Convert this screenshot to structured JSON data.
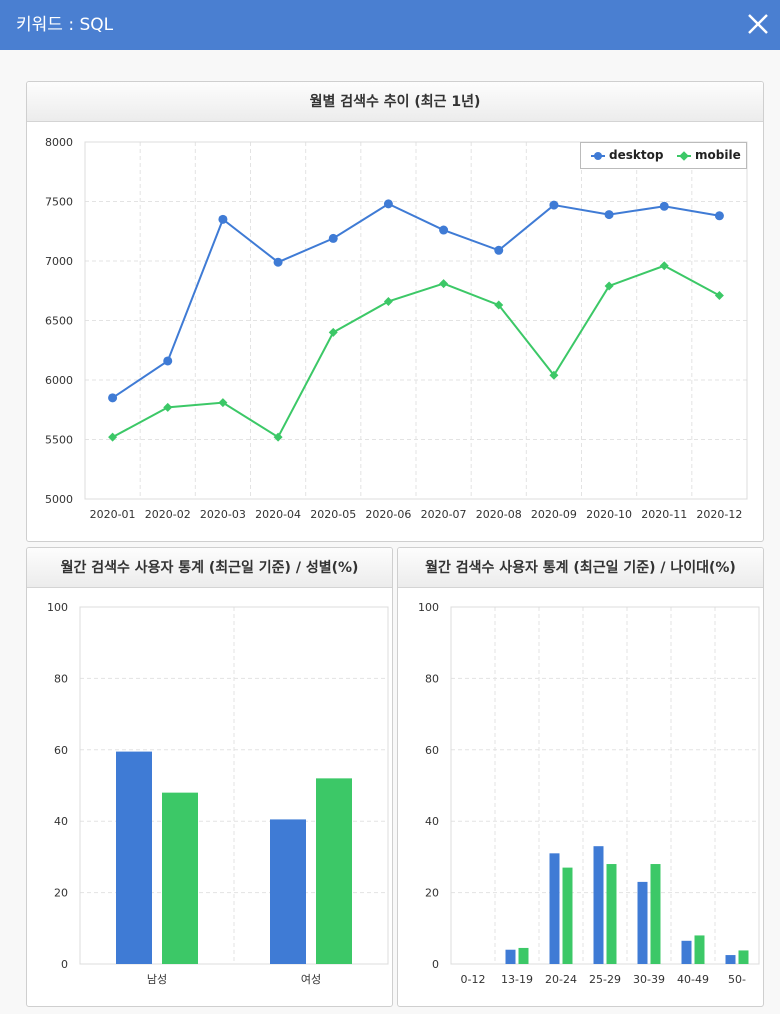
{
  "header": {
    "title": "키워드 : SQL",
    "close_icon": "close-icon"
  },
  "colors": {
    "header_bg": "#4a7fd1",
    "desktop": "#3f7bd5",
    "mobile": "#3cc867",
    "grid": "#e3e3e3"
  },
  "chart_data": [
    {
      "type": "line",
      "title": "월별 검색수 추이 (최근 1년)",
      "categories": [
        "2020-01",
        "2020-02",
        "2020-03",
        "2020-04",
        "2020-05",
        "2020-06",
        "2020-07",
        "2020-08",
        "2020-09",
        "2020-10",
        "2020-11",
        "2020-12"
      ],
      "series": [
        {
          "name": "desktop",
          "marker": "circle",
          "color": "#3f7bd5",
          "values": [
            5850,
            6160,
            7350,
            6990,
            7190,
            7480,
            7260,
            7090,
            7470,
            7390,
            7460,
            7380
          ]
        },
        {
          "name": "mobile",
          "marker": "diamond",
          "color": "#3cc867",
          "values": [
            5520,
            5770,
            5810,
            5520,
            6400,
            6660,
            6810,
            6630,
            6040,
            6790,
            6960,
            6710
          ]
        }
      ],
      "ylim": [
        5000,
        8000
      ],
      "yticks": [
        5000,
        5500,
        6000,
        6500,
        7000,
        7500,
        8000
      ],
      "grid": true,
      "legend": "top-right"
    },
    {
      "type": "bar",
      "title": "월간 검색수 사용자 통계 (최근일 기준) / 성별(%)",
      "categories": [
        "남성",
        "여성"
      ],
      "series": [
        {
          "color": "#3f7bd5",
          "values": [
            59.5,
            40.5
          ]
        },
        {
          "color": "#3cc867",
          "values": [
            48,
            52
          ]
        }
      ],
      "ylim": [
        0,
        100
      ],
      "yticks": [
        0,
        20,
        40,
        60,
        80,
        100
      ],
      "grid": true
    },
    {
      "type": "bar",
      "title": "월간 검색수 사용자 통계 (최근일 기준) / 나이대(%)",
      "categories": [
        "0-12",
        "13-19",
        "20-24",
        "25-29",
        "30-39",
        "40-49",
        "50-"
      ],
      "series": [
        {
          "color": "#3f7bd5",
          "values": [
            0,
            4,
            31,
            33,
            23,
            6.5,
            2.5
          ]
        },
        {
          "color": "#3cc867",
          "values": [
            0,
            4.5,
            27,
            28,
            28,
            8,
            3.8
          ]
        }
      ],
      "ylim": [
        0,
        100
      ],
      "yticks": [
        0,
        20,
        40,
        60,
        80,
        100
      ],
      "grid": true
    }
  ]
}
